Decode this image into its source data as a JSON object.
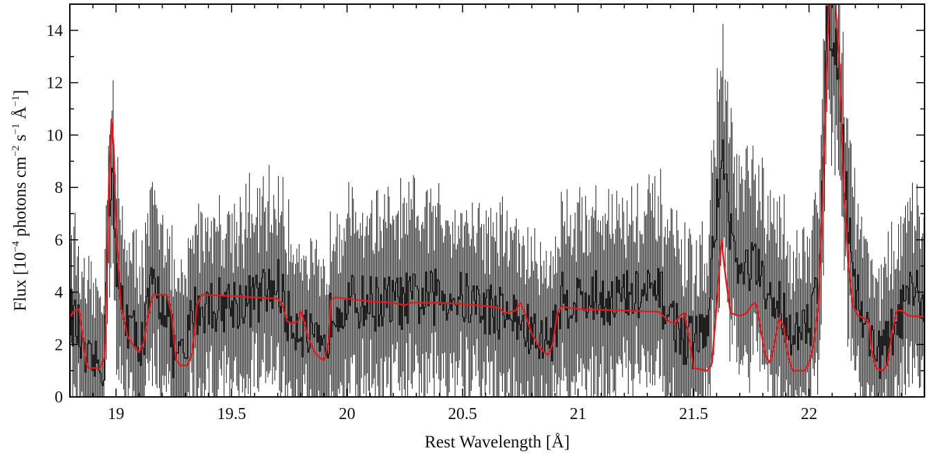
{
  "chart_data": {
    "type": "line",
    "xlabel": "Rest Wavelength [Å]",
    "ylabel": {
      "prefix": "Flux [10",
      "exp1": "−4",
      "mid1": " photons cm",
      "exp2": "−2",
      "mid2": " s",
      "exp3": "−1",
      "mid3": " Å",
      "exp4": "−1",
      "suffix": "]"
    },
    "xlim": [
      18.8,
      22.5
    ],
    "ylim": [
      0,
      15
    ],
    "xticks": [
      {
        "value": 19,
        "label": "19"
      },
      {
        "value": 19.5,
        "label": "19.5"
      },
      {
        "value": 20,
        "label": "20"
      },
      {
        "value": 20.5,
        "label": "20.5"
      },
      {
        "value": 21,
        "label": "21"
      },
      {
        "value": 21.5,
        "label": "21.5"
      },
      {
        "value": 22,
        "label": "22"
      }
    ],
    "yticks": [
      {
        "value": 0,
        "label": "0"
      },
      {
        "value": 2,
        "label": "2"
      },
      {
        "value": 4,
        "label": "4"
      },
      {
        "value": 6,
        "label": "6"
      },
      {
        "value": 8,
        "label": "8"
      },
      {
        "value": 10,
        "label": "10"
      },
      {
        "value": 12,
        "label": "12"
      },
      {
        "value": 14,
        "label": "14"
      }
    ],
    "x_minor_step": 0.1,
    "y_minor_step": 1,
    "series": [
      {
        "kind": "data-histogram-with-errorbars",
        "color": "#1a1a1a",
        "bin_width": 0.005,
        "profile": [
          [
            18.8,
            3.3
          ],
          [
            18.84,
            2.4
          ],
          [
            18.86,
            1.3
          ],
          [
            18.95,
            1.2
          ],
          [
            18.965,
            7.0
          ],
          [
            18.985,
            8.8
          ],
          [
            19.0,
            4.5
          ],
          [
            19.04,
            3.2
          ],
          [
            19.08,
            2.3
          ],
          [
            19.12,
            2.2
          ],
          [
            19.15,
            4.1
          ],
          [
            19.22,
            3.5
          ],
          [
            19.25,
            1.6
          ],
          [
            19.3,
            1.4
          ],
          [
            19.33,
            3.3
          ],
          [
            19.4,
            3.5
          ],
          [
            19.6,
            3.7
          ],
          [
            19.71,
            4.3
          ],
          [
            19.74,
            3.0
          ],
          [
            19.8,
            2.7
          ],
          [
            19.85,
            2.0
          ],
          [
            19.9,
            1.5
          ],
          [
            19.94,
            3.6
          ],
          [
            20.2,
            3.6
          ],
          [
            20.45,
            3.9
          ],
          [
            20.6,
            3.4
          ],
          [
            20.7,
            3.2
          ],
          [
            20.77,
            2.6
          ],
          [
            20.85,
            2.0
          ],
          [
            20.9,
            2.6
          ],
          [
            20.93,
            3.7
          ],
          [
            21.2,
            3.8
          ],
          [
            21.35,
            3.9
          ],
          [
            21.42,
            2.8
          ],
          [
            21.48,
            2.0
          ],
          [
            21.56,
            2.6
          ],
          [
            21.59,
            6.0
          ],
          [
            21.62,
            9.5
          ],
          [
            21.66,
            6.5
          ],
          [
            21.7,
            4.5
          ],
          [
            21.76,
            5.2
          ],
          [
            21.82,
            3.6
          ],
          [
            21.88,
            3.5
          ],
          [
            21.94,
            2.2
          ],
          [
            22.0,
            2.6
          ],
          [
            22.04,
            4.5
          ],
          [
            22.06,
            9.0
          ],
          [
            22.08,
            14.5
          ],
          [
            22.12,
            13.5
          ],
          [
            22.15,
            9.0
          ],
          [
            22.2,
            4.2
          ],
          [
            22.25,
            2.5
          ],
          [
            22.32,
            1.6
          ],
          [
            22.37,
            2.6
          ],
          [
            22.42,
            3.6
          ],
          [
            22.5,
            3.9
          ]
        ],
        "noise_amplitude": 1.1,
        "error_range": [
          2.0,
          3.6
        ]
      },
      {
        "kind": "model",
        "color": "#e31a1c",
        "points": [
          [
            18.8,
            3.05
          ],
          [
            18.82,
            3.3
          ],
          [
            18.84,
            3.35
          ],
          [
            18.855,
            2.3
          ],
          [
            18.87,
            1.3
          ],
          [
            18.88,
            1.1
          ],
          [
            18.93,
            1.1
          ],
          [
            18.95,
            1.5
          ],
          [
            18.96,
            4.5
          ],
          [
            18.97,
            8.5
          ],
          [
            18.98,
            10.6
          ],
          [
            18.99,
            9.5
          ],
          [
            19.0,
            6.5
          ],
          [
            19.02,
            3.5
          ],
          [
            19.05,
            2.3
          ],
          [
            19.08,
            1.9
          ],
          [
            19.1,
            1.7
          ],
          [
            19.12,
            2.1
          ],
          [
            19.14,
            3.2
          ],
          [
            19.16,
            3.9
          ],
          [
            19.22,
            3.9
          ],
          [
            19.24,
            3.2
          ],
          [
            19.26,
            1.4
          ],
          [
            19.28,
            1.2
          ],
          [
            19.31,
            1.2
          ],
          [
            19.33,
            1.7
          ],
          [
            19.35,
            3.5
          ],
          [
            19.37,
            3.9
          ],
          [
            19.5,
            3.85
          ],
          [
            19.6,
            3.8
          ],
          [
            19.7,
            3.75
          ],
          [
            19.72,
            3.5
          ],
          [
            19.74,
            2.9
          ],
          [
            19.76,
            2.8
          ],
          [
            19.79,
            2.9
          ],
          [
            19.8,
            3.3
          ],
          [
            19.81,
            3.0
          ],
          [
            19.83,
            2.3
          ],
          [
            19.86,
            1.7
          ],
          [
            19.88,
            1.5
          ],
          [
            19.9,
            1.4
          ],
          [
            19.92,
            2.1
          ],
          [
            19.93,
            3.7
          ],
          [
            19.95,
            3.8
          ],
          [
            20.1,
            3.65
          ],
          [
            20.2,
            3.6
          ],
          [
            20.25,
            3.5
          ],
          [
            20.28,
            3.6
          ],
          [
            20.4,
            3.6
          ],
          [
            20.5,
            3.55
          ],
          [
            20.62,
            3.45
          ],
          [
            20.66,
            3.4
          ],
          [
            20.68,
            3.2
          ],
          [
            20.73,
            3.3
          ],
          [
            20.75,
            3.6
          ],
          [
            20.77,
            3.2
          ],
          [
            20.8,
            2.4
          ],
          [
            20.84,
            1.8
          ],
          [
            20.87,
            1.6
          ],
          [
            20.89,
            2.0
          ],
          [
            20.91,
            3.2
          ],
          [
            20.93,
            3.45
          ],
          [
            21.0,
            3.35
          ],
          [
            21.2,
            3.3
          ],
          [
            21.35,
            3.25
          ],
          [
            21.38,
            3.0
          ],
          [
            21.4,
            2.85
          ],
          [
            21.42,
            2.8
          ],
          [
            21.44,
            3.1
          ],
          [
            21.46,
            3.2
          ],
          [
            21.48,
            2.3
          ],
          [
            21.5,
            1.1
          ],
          [
            21.56,
            1.0
          ],
          [
            21.58,
            1.3
          ],
          [
            21.6,
            3.5
          ],
          [
            21.62,
            6.0
          ],
          [
            21.64,
            4.5
          ],
          [
            21.66,
            3.2
          ],
          [
            21.7,
            3.1
          ],
          [
            21.73,
            3.2
          ],
          [
            21.75,
            3.5
          ],
          [
            21.77,
            3.6
          ],
          [
            21.79,
            2.6
          ],
          [
            21.81,
            1.6
          ],
          [
            21.83,
            1.3
          ],
          [
            21.85,
            2.0
          ],
          [
            21.87,
            3.0
          ],
          [
            21.89,
            2.7
          ],
          [
            21.91,
            1.5
          ],
          [
            21.93,
            1.0
          ],
          [
            21.98,
            1.0
          ],
          [
            22.0,
            1.3
          ],
          [
            22.02,
            2.0
          ],
          [
            22.04,
            3.5
          ],
          [
            22.06,
            8.0
          ],
          [
            22.08,
            13.5
          ],
          [
            22.09,
            15.5
          ],
          [
            22.11,
            15.5
          ],
          [
            22.13,
            13.0
          ],
          [
            22.15,
            8.0
          ],
          [
            22.17,
            5.0
          ],
          [
            22.19,
            3.5
          ],
          [
            22.21,
            3.1
          ],
          [
            22.24,
            3.0
          ],
          [
            22.26,
            2.8
          ],
          [
            22.27,
            1.8
          ],
          [
            22.29,
            1.1
          ],
          [
            22.32,
            1.0
          ],
          [
            22.34,
            1.3
          ],
          [
            22.36,
            2.5
          ],
          [
            22.38,
            3.3
          ],
          [
            22.4,
            3.3
          ],
          [
            22.43,
            3.1
          ],
          [
            22.5,
            3.05
          ]
        ]
      }
    ]
  }
}
